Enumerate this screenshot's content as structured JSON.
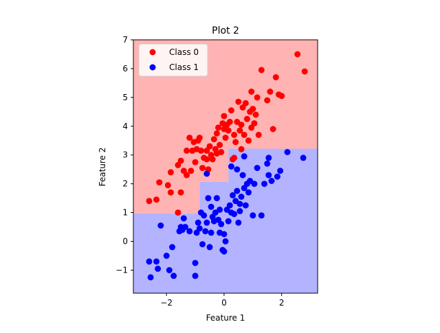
{
  "chart_data": {
    "type": "scatter",
    "title": "Plot 2",
    "xlabel": "Feature 1",
    "ylabel": "Feature 2",
    "xlim": [
      -3.15,
      3.25
    ],
    "ylim": [
      -1.8,
      7.0
    ],
    "xticks": [
      -2,
      0,
      2
    ],
    "yticks": [
      -1,
      0,
      1,
      2,
      3,
      4,
      5,
      6,
      7
    ],
    "xtick_labels": [
      "−2",
      "0",
      "2"
    ],
    "ytick_labels": [
      "−1",
      "0",
      "1",
      "2",
      "3",
      "4",
      "5",
      "6",
      "7"
    ],
    "grid": false,
    "legend_position": "top-left",
    "decision_regions": [
      {
        "class": "Class 0",
        "color": "#ffb3b3",
        "polygon": [
          [
            -3.15,
            0.97
          ],
          [
            -0.85,
            0.97
          ],
          [
            -0.85,
            2.07
          ],
          [
            0.15,
            2.07
          ],
          [
            0.15,
            2.72
          ],
          [
            0.15,
            3.22
          ],
          [
            3.25,
            3.22
          ],
          [
            3.25,
            7.0
          ],
          [
            -3.15,
            7.0
          ]
        ]
      },
      {
        "class": "Class 1",
        "color": "#b3b3ff",
        "polygon": [
          [
            -3.15,
            -1.8
          ],
          [
            3.25,
            -1.8
          ],
          [
            3.25,
            3.22
          ],
          [
            0.15,
            3.22
          ],
          [
            0.15,
            2.07
          ],
          [
            -0.85,
            2.07
          ],
          [
            -0.85,
            0.97
          ],
          [
            -3.15,
            0.97
          ]
        ]
      }
    ],
    "series": [
      {
        "name": "Class 0",
        "color": "#ff0000",
        "points": [
          [
            -2.6,
            1.4
          ],
          [
            -2.35,
            1.45
          ],
          [
            -2.25,
            2.05
          ],
          [
            -1.95,
            1.95
          ],
          [
            -1.85,
            2.4
          ],
          [
            -1.85,
            1.7
          ],
          [
            -1.6,
            1.0
          ],
          [
            -1.6,
            2.65
          ],
          [
            -1.5,
            1.7
          ],
          [
            -1.5,
            2.8
          ],
          [
            -1.4,
            2.45
          ],
          [
            -1.3,
            2.3
          ],
          [
            -1.3,
            3.15
          ],
          [
            -1.2,
            3.6
          ],
          [
            -1.15,
            2.45
          ],
          [
            -1.1,
            3.15
          ],
          [
            -1.05,
            3.45
          ],
          [
            -1.0,
            2.75
          ],
          [
            -0.95,
            3.2
          ],
          [
            -0.9,
            3.5
          ],
          [
            -0.85,
            3.6
          ],
          [
            -0.8,
            3.15
          ],
          [
            -0.75,
            2.55
          ],
          [
            -0.7,
            2.9
          ],
          [
            -0.6,
            3.15
          ],
          [
            -0.55,
            2.5
          ],
          [
            -0.5,
            3.3
          ],
          [
            -0.45,
            3.0
          ],
          [
            -0.4,
            2.85
          ],
          [
            -0.35,
            3.55
          ],
          [
            -0.3,
            3.2
          ],
          [
            -0.25,
            3.75
          ],
          [
            -0.2,
            3.95
          ],
          [
            -0.15,
            3.35
          ],
          [
            -0.1,
            3.1
          ],
          [
            -0.05,
            4.1
          ],
          [
            0.0,
            3.9
          ],
          [
            0.0,
            4.35
          ],
          [
            0.05,
            3.6
          ],
          [
            0.1,
            4.05
          ],
          [
            0.15,
            3.85
          ],
          [
            0.2,
            4.15
          ],
          [
            0.25,
            4.55
          ],
          [
            0.3,
            2.85
          ],
          [
            0.35,
            3.7
          ],
          [
            0.4,
            3.45
          ],
          [
            0.45,
            4.15
          ],
          [
            0.5,
            4.85
          ],
          [
            0.55,
            3.85
          ],
          [
            0.6,
            4.05
          ],
          [
            0.65,
            4.65
          ],
          [
            0.7,
            3.7
          ],
          [
            0.75,
            4.8
          ],
          [
            0.8,
            4.25
          ],
          [
            0.85,
            3.5
          ],
          [
            0.9,
            4.5
          ],
          [
            0.95,
            5.2
          ],
          [
            1.0,
            4.6
          ],
          [
            1.05,
            4.1
          ],
          [
            1.1,
            4.4
          ],
          [
            1.15,
            5.0
          ],
          [
            1.2,
            3.7
          ],
          [
            1.3,
            5.95
          ],
          [
            1.5,
            4.9
          ],
          [
            1.6,
            5.2
          ],
          [
            1.7,
            3.9
          ],
          [
            1.8,
            5.7
          ],
          [
            1.9,
            5.1
          ],
          [
            2.0,
            5.05
          ],
          [
            2.55,
            6.5
          ],
          [
            2.8,
            5.9
          ],
          [
            0.35,
            2.9
          ],
          [
            -0.25,
            3.05
          ],
          [
            0.6,
            3.2
          ],
          [
            -0.6,
            2.85
          ],
          [
            0.95,
            3.95
          ]
        ]
      },
      {
        "name": "Class 1",
        "color": "#0000ff",
        "points": [
          [
            -2.6,
            -0.7
          ],
          [
            -2.55,
            -1.25
          ],
          [
            -2.35,
            -0.7
          ],
          [
            -2.3,
            -0.95
          ],
          [
            -2.2,
            0.55
          ],
          [
            -2.0,
            -0.5
          ],
          [
            -1.9,
            -1.0
          ],
          [
            -1.8,
            -0.2
          ],
          [
            -1.75,
            -1.2
          ],
          [
            -1.55,
            0.35
          ],
          [
            -1.45,
            0.4
          ],
          [
            -1.4,
            0.8
          ],
          [
            -1.35,
            0.5
          ],
          [
            -1.2,
            0.35
          ],
          [
            -1.0,
            -0.75
          ],
          [
            -1.0,
            -1.2
          ],
          [
            -0.95,
            0.3
          ],
          [
            -0.9,
            0.65
          ],
          [
            -0.85,
            0.45
          ],
          [
            -0.8,
            1.0
          ],
          [
            -0.75,
            -0.1
          ],
          [
            -0.7,
            0.9
          ],
          [
            -0.65,
            0.35
          ],
          [
            -0.6,
            0.65
          ],
          [
            -0.55,
            1.5
          ],
          [
            -0.5,
            -0.2
          ],
          [
            -0.45,
            1.2
          ],
          [
            -0.4,
            0.85
          ],
          [
            -0.35,
            0.7
          ],
          [
            -0.3,
            1.0
          ],
          [
            -0.25,
            1.5
          ],
          [
            -0.2,
            0.75
          ],
          [
            -0.15,
            0.3
          ],
          [
            -0.1,
            0.6
          ],
          [
            -0.05,
            -0.3
          ],
          [
            0.0,
            -0.35
          ],
          [
            0.05,
            0.0
          ],
          [
            0.1,
            1.1
          ],
          [
            0.15,
            0.7
          ],
          [
            0.2,
            1.25
          ],
          [
            0.25,
            1.0
          ],
          [
            0.3,
            1.6
          ],
          [
            0.35,
            0.95
          ],
          [
            0.4,
            1.4
          ],
          [
            0.45,
            1.75
          ],
          [
            0.5,
            0.65
          ],
          [
            0.55,
            1.3
          ],
          [
            0.6,
            1.55
          ],
          [
            0.65,
            2.3
          ],
          [
            0.7,
            1.85
          ],
          [
            0.75,
            1.25
          ],
          [
            0.8,
            2.0
          ],
          [
            0.85,
            1.7
          ],
          [
            0.9,
            2.1
          ],
          [
            1.0,
            0.9
          ],
          [
            1.05,
            2.0
          ],
          [
            1.15,
            2.55
          ],
          [
            1.3,
            0.9
          ],
          [
            1.4,
            2.0
          ],
          [
            1.55,
            2.3
          ],
          [
            1.65,
            2.1
          ],
          [
            1.85,
            2.25
          ],
          [
            1.95,
            2.45
          ],
          [
            2.2,
            3.1
          ],
          [
            2.75,
            2.9
          ],
          [
            1.5,
            2.7
          ],
          [
            1.55,
            2.9
          ],
          [
            0.45,
            2.5
          ],
          [
            0.25,
            2.6
          ],
          [
            0.7,
            2.95
          ],
          [
            -0.6,
            2.35
          ],
          [
            -0.15,
            1.1
          ],
          [
            0.55,
            1.05
          ],
          [
            -0.45,
            0.3
          ],
          [
            0.0,
            0.25
          ],
          [
            -1.5,
            0.5
          ]
        ]
      }
    ]
  }
}
